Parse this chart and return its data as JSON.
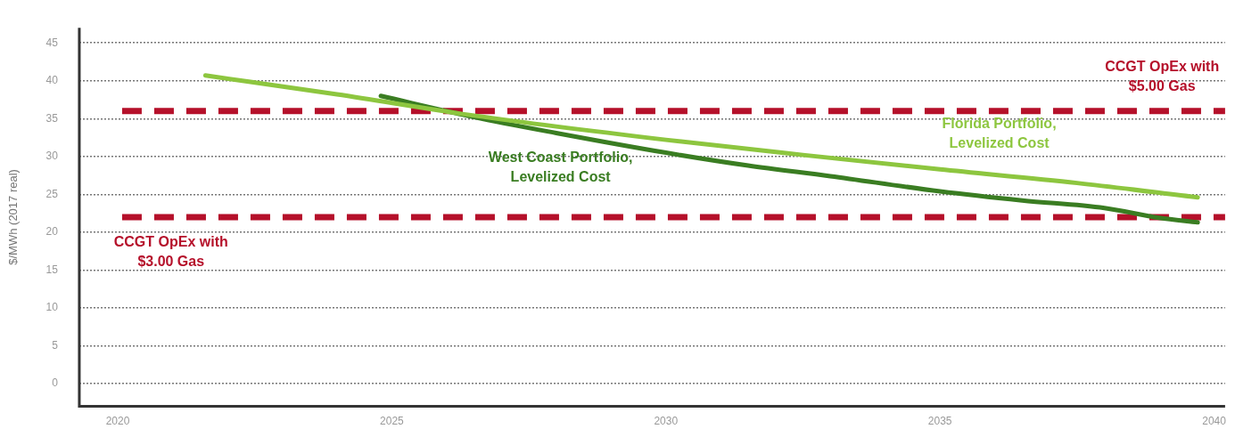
{
  "chart_data": {
    "type": "line",
    "ylabel": "$/MWh (2017 real)",
    "xlim": [
      2019.3,
      2040.2
    ],
    "xticks": [
      2020,
      2025,
      2030,
      2035,
      2040
    ],
    "ylim": [
      -3,
      47
    ],
    "yticks": [
      0,
      5,
      10,
      15,
      20,
      25,
      30,
      35,
      40,
      45
    ],
    "grid": "y",
    "legend": false,
    "line_style": "solid",
    "marker": "none",
    "series": [
      {
        "name": "Florida Portfolio, Levelized Cost",
        "color": "#8dc63f",
        "x": [
          2021.6,
          2024,
          2026.5,
          2030,
          2032.5,
          2035,
          2037.5,
          2039.7
        ],
        "values": [
          40.7,
          38.2,
          35.4,
          32.2,
          30.2,
          28.3,
          26.5,
          24.6
        ]
      },
      {
        "name": "West Coast Portfolio, Levelized Cost",
        "color": "#3a7d22",
        "x": [
          2024.8,
          2026.5,
          2028,
          2030,
          2031.5,
          2033,
          2035,
          2036.5,
          2038,
          2039,
          2039.7
        ],
        "values": [
          38,
          35.2,
          33.1,
          30.5,
          28.8,
          27.4,
          25.4,
          24.2,
          23.2,
          21.9,
          21.3
        ]
      }
    ],
    "ref_lines": [
      {
        "axis": "y",
        "value": 36,
        "color": "#b5102a",
        "line_style": "dashed",
        "label": "CCGT OpEx with $5.00 Gas"
      },
      {
        "axis": "y",
        "value": 22,
        "color": "#b5102a",
        "line_style": "dashed",
        "label": "CCGT OpEx with $3.00 Gas"
      }
    ]
  }
}
